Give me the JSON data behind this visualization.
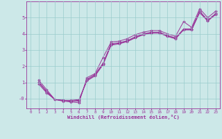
{
  "xlabel": "Windchill (Refroidissement éolien,°C)",
  "background_color": "#cce8e8",
  "grid_color": "#99cccc",
  "line_color": "#993399",
  "xlim": [
    -0.5,
    23.5
  ],
  "ylim": [
    -0.6,
    6.0
  ],
  "ytick_vals": [
    0,
    1,
    2,
    3,
    4,
    5
  ],
  "ytick_labels": [
    "-0",
    "1",
    "2",
    "3",
    "4",
    "5"
  ],
  "xtick_vals": [
    0,
    1,
    2,
    3,
    4,
    5,
    6,
    7,
    8,
    9,
    10,
    11,
    12,
    13,
    14,
    15,
    16,
    17,
    18,
    19,
    20,
    21,
    22,
    23
  ],
  "lines": [
    {
      "x": [
        1,
        2,
        3,
        4,
        5,
        6,
        7,
        8,
        9,
        10,
        11,
        12,
        13,
        14,
        15,
        16,
        17,
        18,
        19,
        20,
        21,
        22,
        23
      ],
      "y": [
        1.15,
        0.55,
        -0.05,
        -0.15,
        -0.2,
        -0.25,
        1.3,
        1.55,
        2.55,
        3.5,
        3.55,
        3.7,
        3.95,
        4.1,
        4.2,
        4.2,
        4.0,
        3.85,
        4.75,
        4.4,
        5.55,
        5.0,
        5.4
      ]
    },
    {
      "x": [
        1,
        2,
        3,
        4,
        5,
        6,
        7,
        8,
        9,
        10,
        11,
        12,
        13,
        14,
        15,
        16,
        17,
        18,
        19,
        20,
        21,
        22,
        23
      ],
      "y": [
        1.05,
        0.45,
        -0.05,
        -0.1,
        -0.15,
        -0.15,
        1.2,
        1.5,
        2.2,
        3.4,
        3.45,
        3.58,
        3.82,
        4.0,
        4.1,
        4.1,
        3.9,
        3.75,
        4.3,
        4.3,
        5.4,
        4.85,
        5.25
      ]
    },
    {
      "x": [
        1,
        2,
        3,
        4,
        5,
        6,
        7,
        8,
        9,
        10,
        11,
        12,
        13,
        14,
        15,
        16,
        17,
        18,
        19,
        20,
        21,
        22,
        23
      ],
      "y": [
        1.0,
        0.4,
        -0.05,
        -0.1,
        -0.15,
        -0.1,
        1.15,
        1.45,
        2.15,
        3.35,
        3.42,
        3.55,
        3.78,
        3.97,
        4.07,
        4.07,
        3.87,
        3.72,
        4.27,
        4.27,
        5.35,
        4.82,
        5.22
      ]
    },
    {
      "x": [
        1,
        2,
        3,
        4,
        5,
        6,
        7,
        8,
        9,
        10,
        11,
        12,
        13,
        14,
        15,
        16,
        17,
        18,
        19,
        20,
        21,
        22,
        23
      ],
      "y": [
        0.9,
        0.35,
        -0.05,
        -0.1,
        -0.1,
        -0.05,
        1.1,
        1.4,
        2.1,
        3.3,
        3.38,
        3.52,
        3.75,
        3.94,
        4.04,
        4.04,
        3.84,
        3.69,
        4.24,
        4.24,
        5.3,
        4.79,
        5.19
      ]
    }
  ]
}
